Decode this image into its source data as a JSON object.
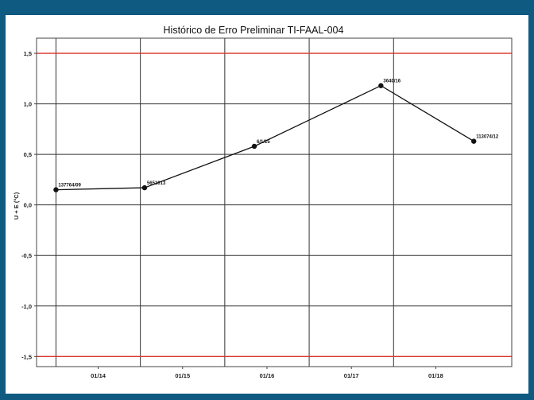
{
  "chart_data": {
    "type": "line",
    "title": "Histórico de Erro Preliminar TI-FAAL-004",
    "xlabel": "",
    "ylabel": "U + E (°C)",
    "x_tick_labels": [
      "01/14",
      "01/15",
      "01/16",
      "01/17",
      "01/18"
    ],
    "y_tick_labels": [
      "1,5",
      "1,0",
      "0,5",
      "0,0",
      "-0,5",
      "-1,0",
      "-1,5"
    ],
    "y_ticks": [
      1.5,
      1.0,
      0.5,
      0.0,
      -0.5,
      -1.0,
      -1.5
    ],
    "ylim": [
      -1.6,
      1.65
    ],
    "xlim": [
      2013.27,
      2018.9
    ],
    "grid": true,
    "limits": [
      1.5,
      -1.5
    ],
    "colors": {
      "series": "#111111",
      "limit": "#d9352b",
      "grid": "#333333",
      "border": "#0f5a80"
    },
    "series": [
      {
        "x": [
          2013.5,
          2014.55,
          2015.85,
          2017.35,
          2018.45
        ],
        "values": [
          0.15,
          0.17,
          0.58,
          1.18,
          0.63
        ],
        "labels": [
          "137764/09",
          "5651013",
          "6/1/15",
          "3640/16",
          "113074/12"
        ]
      }
    ]
  }
}
